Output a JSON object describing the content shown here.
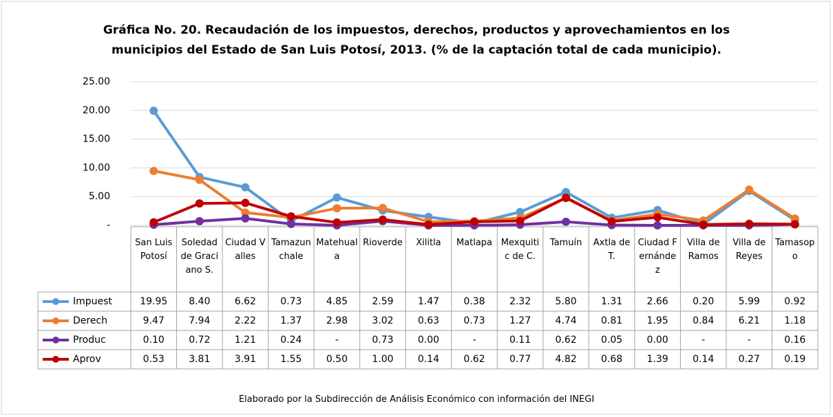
{
  "chart_data": {
    "type": "line",
    "title": "Gráfica No. 20. Recaudación de los impuestos, derechos, productos y aprovechamientos en los municipios del Estado de San Luis Potosí, 2013. (% de la captación total de cada municipio).",
    "footer": "Elaborado por la Subdirección de Análisis Económico con información del INEGI",
    "categories": [
      "San Luis Potosí",
      "Soledad de Graciano S.",
      "Ciudad Valles",
      "Tamazunchale",
      "Matehuala",
      "Rioverde",
      "Xilitla",
      "Matlapa",
      "Mexquitic de C.",
      "Tamuín",
      "Axtla de T.",
      "Ciudad Fernández",
      "Villa de Ramos",
      "Villa de Reyes",
      "Tamasopo"
    ],
    "series": [
      {
        "name": "Impuest",
        "color": "#5b9bd5",
        "values": [
          19.95,
          8.4,
          6.62,
          0.73,
          4.85,
          2.59,
          1.47,
          0.38,
          2.32,
          5.8,
          1.31,
          2.66,
          0.2,
          5.99,
          0.92
        ],
        "value_labels": [
          "19.95",
          "8.40",
          "6.62",
          "0.73",
          "4.85",
          "2.59",
          "1.47",
          "0.38",
          "2.32",
          "5.80",
          "1.31",
          "2.66",
          "0.20",
          "5.99",
          "0.92"
        ]
      },
      {
        "name": "Derech",
        "color": "#ed7d31",
        "values": [
          9.47,
          7.94,
          2.22,
          1.37,
          2.98,
          3.02,
          0.63,
          0.73,
          1.27,
          4.74,
          0.81,
          1.95,
          0.84,
          6.21,
          1.18
        ],
        "value_labels": [
          "9.47",
          "7.94",
          "2.22",
          "1.37",
          "2.98",
          "3.02",
          "0.63",
          "0.73",
          "1.27",
          "4.74",
          "0.81",
          "1.95",
          "0.84",
          "6.21",
          "1.18"
        ]
      },
      {
        "name": "Produc",
        "color": "#7030a0",
        "values": [
          0.1,
          0.72,
          1.21,
          0.24,
          0,
          0.73,
          0,
          0,
          0.11,
          0.62,
          0.05,
          0,
          0,
          0,
          0.16
        ],
        "value_labels": [
          "0.10",
          "0.72",
          "1.21",
          "0.24",
          "-",
          "0.73",
          "0.00",
          "-",
          "0.11",
          "0.62",
          "0.05",
          "0.00",
          "-",
          "-",
          "0.16"
        ]
      },
      {
        "name": "Aprov",
        "color": "#c00000",
        "values": [
          0.53,
          3.81,
          3.91,
          1.55,
          0.5,
          1.0,
          0.14,
          0.62,
          0.77,
          4.82,
          0.68,
          1.39,
          0.14,
          0.27,
          0.19
        ],
        "value_labels": [
          "0.53",
          "3.81",
          "3.91",
          "1.55",
          "0.50",
          "1.00",
          "0.14",
          "0.62",
          "0.77",
          "4.82",
          "0.68",
          "1.39",
          "0.14",
          "0.27",
          "0.19"
        ]
      }
    ],
    "ylim": [
      0,
      25
    ],
    "yticks": [
      {
        "value": 0,
        "label": "-"
      },
      {
        "value": 5,
        "label": "5.00"
      },
      {
        "value": 10,
        "label": "10.00"
      },
      {
        "value": 15,
        "label": "15.00"
      },
      {
        "value": 20,
        "label": "20.00"
      },
      {
        "value": 25,
        "label": "25.00"
      }
    ],
    "grid": true
  }
}
